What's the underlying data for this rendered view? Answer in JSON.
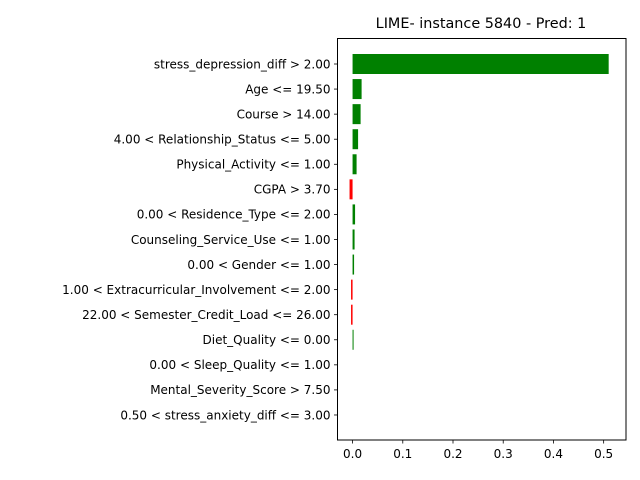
{
  "chart_data": {
    "type": "bar",
    "orientation": "horizontal",
    "title": "LIME- instance 5840 - Pred: 1",
    "xlabel": "",
    "ylabel": "",
    "xlim": [
      -0.03,
      0.5445
    ],
    "xticks": [
      0.0,
      0.1,
      0.2,
      0.3,
      0.4,
      0.5
    ],
    "xtick_labels": [
      "0.0",
      "0.1",
      "0.2",
      "0.3",
      "0.4",
      "0.5"
    ],
    "grid": false,
    "positive_color": "#008000",
    "negative_color": "#ff0000",
    "categories": [
      "stress_depression_diff > 2.00",
      "Age <= 19.50",
      "Course > 14.00",
      "4.00 < Relationship_Status <= 5.00",
      "Physical_Activity <= 1.00",
      "CGPA > 3.70",
      "0.00 < Residence_Type <= 2.00",
      "Counseling_Service_Use <= 1.00",
      "0.00 < Gender <= 1.00",
      "1.00 < Extracurricular_Involvement <= 2.00",
      "22.00 < Semester_Credit_Load <= 26.00",
      "Diet_Quality <= 0.00",
      "0.00 < Sleep_Quality <= 1.00",
      "Mental_Severity_Score > 7.50",
      "0.50 < stress_anxiety_diff <= 3.00"
    ],
    "values": [
      0.51,
      0.018,
      0.016,
      0.011,
      0.008,
      -0.006,
      0.005,
      0.004,
      0.003,
      -0.003,
      -0.003,
      0.002,
      0.0,
      0.0,
      0.0
    ]
  }
}
